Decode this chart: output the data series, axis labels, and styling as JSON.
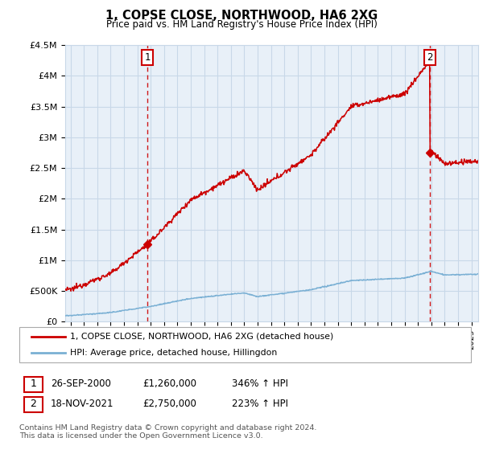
{
  "title": "1, COPSE CLOSE, NORTHWOOD, HA6 2XG",
  "subtitle": "Price paid vs. HM Land Registry's House Price Index (HPI)",
  "ylim": [
    0,
    4500000
  ],
  "yticks": [
    0,
    500000,
    1000000,
    1500000,
    2000000,
    2500000,
    3000000,
    3500000,
    4000000,
    4500000
  ],
  "ytick_labels": [
    "£0",
    "£500K",
    "£1M",
    "£1.5M",
    "£2M",
    "£2.5M",
    "£3M",
    "£3.5M",
    "£4M",
    "£4.5M"
  ],
  "xlim_start": 1994.6,
  "xlim_end": 2025.5,
  "red_color": "#cc0000",
  "blue_color": "#7ab0d4",
  "plot_bg_color": "#e8f0f8",
  "marker1_x": 2000.74,
  "marker1_y": 1260000,
  "marker2_x": 2021.88,
  "marker2_y": 2750000,
  "legend_line1": "1, COPSE CLOSE, NORTHWOOD, HA6 2XG (detached house)",
  "legend_line2": "HPI: Average price, detached house, Hillingdon",
  "table_row1": [
    "1",
    "26-SEP-2000",
    "£1,260,000",
    "346% ↑ HPI"
  ],
  "table_row2": [
    "2",
    "18-NOV-2021",
    "£2,750,000",
    "223% ↑ HPI"
  ],
  "footnote": "Contains HM Land Registry data © Crown copyright and database right 2024.\nThis data is licensed under the Open Government Licence v3.0.",
  "background_color": "#ffffff",
  "grid_color": "#c8d8e8",
  "dashed_line_color": "#cc0000"
}
